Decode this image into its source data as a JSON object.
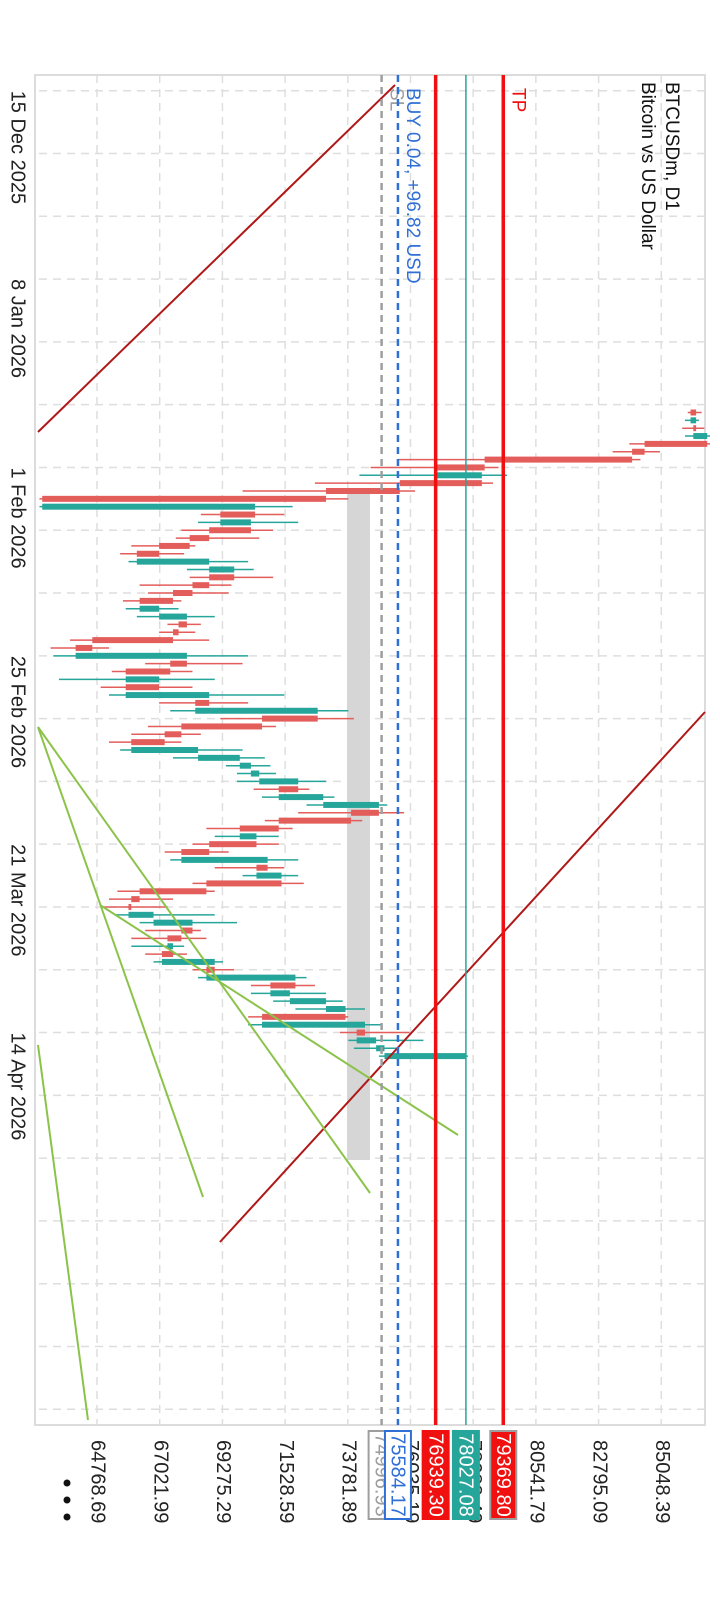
{
  "chart_data": {
    "type": "candlestick",
    "title": "BTCUSDm, D1",
    "subtitle": "Bitcoin vs US Dollar",
    "up_color": "#26a69a",
    "down_color": "#e35d5b",
    "grid": true,
    "xlim": [
      "2025-12-13",
      "2026-06-03"
    ],
    "xticks": [
      {
        "value": "2025-12-15",
        "label": "15 Dec 2025"
      },
      {
        "value": "2025-12-23",
        "label": null
      },
      {
        "value": "2025-12-31",
        "label": null
      },
      {
        "value": "2026-01-08",
        "label": "8 Jan 2026"
      },
      {
        "value": "2026-01-16",
        "label": null
      },
      {
        "value": "2026-01-24",
        "label": null
      },
      {
        "value": "2026-02-01",
        "label": "1 Feb 2026"
      },
      {
        "value": "2026-02-09",
        "label": null
      },
      {
        "value": "2026-02-17",
        "label": null
      },
      {
        "value": "2026-02-25",
        "label": "25 Feb 2026"
      },
      {
        "value": "2026-03-05",
        "label": null
      },
      {
        "value": "2026-03-13",
        "label": null
      },
      {
        "value": "2026-03-21",
        "label": "21 Mar 2026"
      },
      {
        "value": "2026-03-29",
        "label": null
      },
      {
        "value": "2026-04-06",
        "label": null
      },
      {
        "value": "2026-04-14",
        "label": "14 Apr 2026"
      },
      {
        "value": "2026-04-22",
        "label": null
      },
      {
        "value": "2026-04-30",
        "label": null
      },
      {
        "value": "2026-05-08",
        "label": null
      },
      {
        "value": "2026-05-16",
        "label": null
      },
      {
        "value": "2026-05-24",
        "label": null
      },
      {
        "value": "2026-06-01",
        "label": null
      }
    ],
    "ylim": [
      62540,
      86620
    ],
    "yticks": [
      64768.69,
      67021.99,
      69275.29,
      71528.59,
      73781.89,
      76035.19,
      78288.49,
      80541.79,
      82795.09,
      85048.39
    ],
    "x": [
      "2026-01-25",
      "2026-01-26",
      "2026-01-27",
      "2026-01-28",
      "2026-01-29",
      "2026-01-30",
      "2026-01-31",
      "2026-02-01",
      "2026-02-02",
      "2026-02-03",
      "2026-02-04",
      "2026-02-05",
      "2026-02-06",
      "2026-02-07",
      "2026-02-08",
      "2026-02-09",
      "2026-02-10",
      "2026-02-11",
      "2026-02-12",
      "2026-02-13",
      "2026-02-14",
      "2026-02-15",
      "2026-02-16",
      "2026-02-17",
      "2026-02-18",
      "2026-02-19",
      "2026-02-20",
      "2026-02-21",
      "2026-02-22",
      "2026-02-23",
      "2026-02-24",
      "2026-02-25",
      "2026-02-26",
      "2026-02-27",
      "2026-02-28",
      "2026-03-01",
      "2026-03-02",
      "2026-03-03",
      "2026-03-04",
      "2026-03-05",
      "2026-03-06",
      "2026-03-07",
      "2026-03-08",
      "2026-03-09",
      "2026-03-10",
      "2026-03-11",
      "2026-03-12",
      "2026-03-13",
      "2026-03-14",
      "2026-03-15",
      "2026-03-16",
      "2026-03-17",
      "2026-03-18",
      "2026-03-19",
      "2026-03-20",
      "2026-03-21",
      "2026-03-22",
      "2026-03-23",
      "2026-03-24",
      "2026-03-25",
      "2026-03-26",
      "2026-03-27",
      "2026-03-28",
      "2026-03-29",
      "2026-03-30",
      "2026-03-31",
      "2026-04-01",
      "2026-04-02",
      "2026-04-03",
      "2026-04-04",
      "2026-04-05",
      "2026-04-06",
      "2026-04-07",
      "2026-04-08",
      "2026-04-09",
      "2026-04-10",
      "2026-04-11",
      "2026-04-12",
      "2026-04-13",
      "2026-04-14",
      "2026-04-15",
      "2026-04-16",
      "2026-04-17"
    ],
    "open": [
      86300,
      86100,
      86300,
      86200,
      86700,
      84450,
      84000,
      78700,
      76900,
      78600,
      75650,
      73000,
      62800,
      70450,
      69200,
      70300,
      68800,
      68100,
      67000,
      66200,
      68800,
      69700,
      68800,
      68200,
      67500,
      66300,
      67000,
      68000,
      67700,
      67500,
      64600,
      64000,
      68000,
      67400,
      65800,
      67000,
      65800,
      68800,
      68300,
      72700,
      70700,
      67800,
      67200,
      66000,
      68400,
      69900,
      70300,
      70600,
      72000,
      71300,
      72900,
      74900,
      73900,
      71300,
      69900,
      70500,
      68800,
      67800,
      70900,
      70500,
      71400,
      68700,
      66300,
      66000,
      65900,
      66800,
      68200,
      67800,
      67300,
      67500,
      67100,
      69000,
      68700,
      71900,
      71000,
      71700,
      73000,
      73700,
      70700,
      74400,
      74100,
      74800,
      75100
    ],
    "high": [
      86500,
      86400,
      86600,
      86800,
      86800,
      85000,
      84300,
      79200,
      79500,
      79000,
      76200,
      73800,
      71800,
      71500,
      72000,
      71100,
      70600,
      68300,
      67900,
      70200,
      70400,
      71100,
      69600,
      69500,
      67800,
      67700,
      69000,
      68500,
      68300,
      68800,
      65200,
      70200,
      70000,
      68200,
      69000,
      68200,
      71500,
      70200,
      73800,
      74000,
      71200,
      68500,
      67800,
      70000,
      70800,
      71000,
      71200,
      73000,
      72400,
      73300,
      75200,
      75800,
      74300,
      71800,
      71300,
      71300,
      69500,
      72000,
      71500,
      72000,
      72200,
      69000,
      67500,
      67300,
      69000,
      69800,
      68500,
      68700,
      67900,
      68000,
      69300,
      69700,
      72300,
      72600,
      73000,
      73600,
      74400,
      73800,
      75000,
      76000,
      76500,
      75600,
      78100
    ],
    "low": [
      86000,
      85900,
      85800,
      85900,
      83900,
      83300,
      75600,
      74600,
      74200,
      72600,
      70000,
      62700,
      62700,
      68500,
      68400,
      67800,
      67600,
      66000,
      65600,
      65900,
      68000,
      68100,
      66300,
      66600,
      65700,
      65800,
      66200,
      67300,
      67000,
      63800,
      63100,
      63200,
      66500,
      65300,
      63400,
      64900,
      65200,
      67000,
      67400,
      69200,
      66600,
      66000,
      65200,
      65600,
      67500,
      69400,
      69800,
      69800,
      70400,
      70700,
      72300,
      72000,
      70800,
      68700,
      69000,
      68200,
      67200,
      67400,
      69000,
      70000,
      68200,
      65500,
      65200,
      65000,
      65400,
      66300,
      66500,
      66000,
      66000,
      66500,
      66800,
      68200,
      68400,
      70300,
      70300,
      71100,
      71900,
      70200,
      70200,
      73500,
      73800,
      74000,
      74900
    ],
    "close": [
      86100,
      86300,
      86200,
      86700,
      84450,
      84000,
      78700,
      76900,
      78600,
      75650,
      73000,
      62800,
      70450,
      69200,
      70300,
      68800,
      68100,
      67000,
      66200,
      68800,
      69700,
      68800,
      68200,
      67500,
      66300,
      67000,
      68000,
      67700,
      67500,
      64600,
      64000,
      68000,
      67400,
      65800,
      67000,
      65800,
      68800,
      68300,
      72700,
      70700,
      67800,
      67200,
      66000,
      68400,
      69900,
      70300,
      70600,
      72000,
      71300,
      72900,
      74900,
      73900,
      71300,
      69900,
      70500,
      68800,
      67800,
      70900,
      70500,
      71400,
      68700,
      66300,
      66000,
      65900,
      66800,
      68200,
      67800,
      67300,
      67500,
      67100,
      69000,
      68700,
      71900,
      71000,
      71700,
      73000,
      73700,
      70700,
      74400,
      74100,
      74800,
      75100,
      78027.08
    ],
    "levels": [
      {
        "name": "SL",
        "value": 74996.93,
        "color": "#9e9e9e",
        "style": "dashed",
        "box": "outline"
      },
      {
        "name": "BUY 0.04,  +96.82 USD",
        "value": 75584.17,
        "color": "#2f6fd6",
        "style": "dashed",
        "box": "outline"
      },
      {
        "value": 76939.3,
        "value_label": "76939.30",
        "color": "#f01010",
        "style": "solid",
        "box": "filled"
      },
      {
        "value": 78027.08,
        "color": "#26a69a",
        "style": "thin",
        "box": "filled"
      },
      {
        "name": "TP",
        "value": 79369.8,
        "value_label": "79369.80",
        "color": "#f01010",
        "style": "solid",
        "box": "filled"
      }
    ]
  }
}
